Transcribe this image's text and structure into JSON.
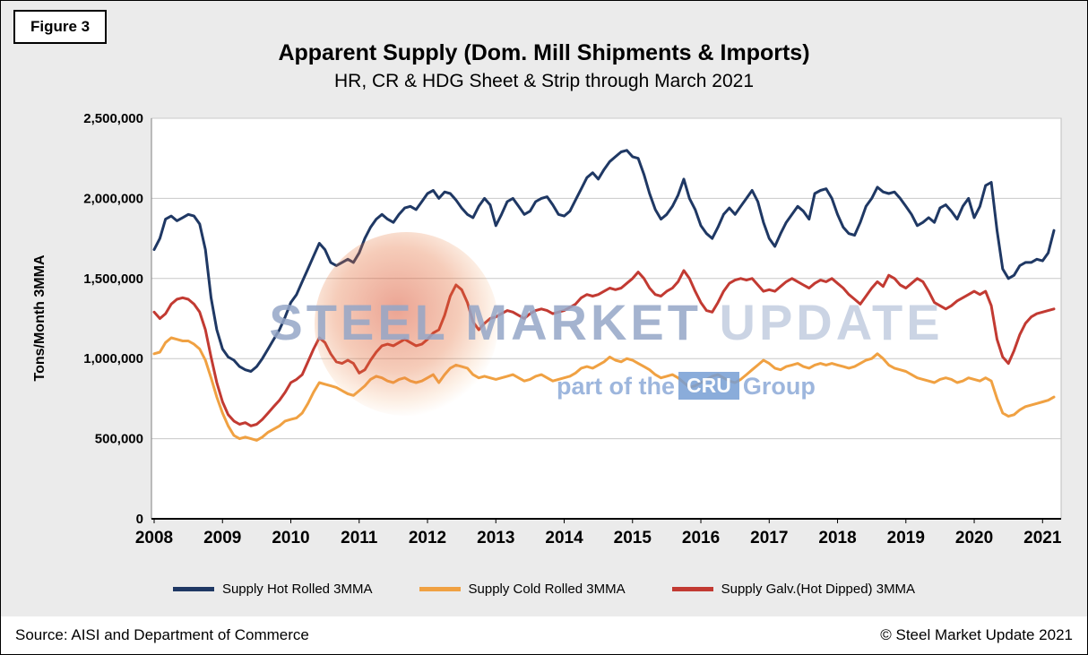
{
  "figure_label": "Figure 3",
  "title": "Apparent Supply (Dom. Mill Shipments & Imports)",
  "subtitle": "HR, CR & HDG Sheet & Strip through March 2021",
  "y_axis_title": "Tons/Month 3MMA",
  "watermark": {
    "text_primary": "STEEL MARKET",
    "text_secondary": "UPDATE",
    "tagline_prefix": "part of the",
    "tagline_box": "CRU",
    "tagline_suffix": "Group"
  },
  "footer": {
    "source": "Source: AISI and Department of Commerce",
    "copyright": "© Steel Market Update 2021"
  },
  "chart_data": {
    "type": "line",
    "title": "Apparent Supply (Dom. Mill Shipments & Imports)",
    "subtitle": "HR, CR & HDG Sheet & Strip through March 2021",
    "ylabel": "Tons/Month 3MMA",
    "xlabel": "",
    "unit": "tons per month, 3-month moving average",
    "value_scale": 1000,
    "x_start": "2008-01",
    "x_end": "2021-03",
    "x_tick_labels": [
      "2008",
      "2009",
      "2010",
      "2011",
      "2012",
      "2013",
      "2014",
      "2015",
      "2016",
      "2017",
      "2018",
      "2019",
      "2020",
      "2021"
    ],
    "ylim": [
      0,
      2500000
    ],
    "ytick_step": 500000,
    "ytick_labels": [
      "0",
      "500,000",
      "1,000,000",
      "1,500,000",
      "2,000,000",
      "2,500,000"
    ],
    "grid": "horizontal",
    "legend_position": "bottom",
    "series": [
      {
        "name": "Supply Hot Rolled 3MMA",
        "color": "#1f3864",
        "values_thousands": [
          1680,
          1750,
          1870,
          1890,
          1860,
          1880,
          1900,
          1890,
          1840,
          1680,
          1380,
          1180,
          1060,
          1010,
          990,
          950,
          930,
          920,
          950,
          1000,
          1060,
          1120,
          1180,
          1260,
          1350,
          1400,
          1480,
          1560,
          1640,
          1720,
          1680,
          1600,
          1580,
          1600,
          1620,
          1600,
          1660,
          1750,
          1820,
          1870,
          1900,
          1870,
          1850,
          1900,
          1940,
          1950,
          1930,
          1980,
          2030,
          2050,
          2000,
          2040,
          2030,
          1990,
          1940,
          1900,
          1880,
          1950,
          2000,
          1960,
          1830,
          1900,
          1980,
          2000,
          1950,
          1900,
          1920,
          1980,
          2000,
          2010,
          1960,
          1900,
          1890,
          1920,
          1990,
          2060,
          2130,
          2160,
          2120,
          2180,
          2230,
          2260,
          2290,
          2300,
          2260,
          2250,
          2150,
          2030,
          1930,
          1870,
          1900,
          1950,
          2020,
          2120,
          2000,
          1930,
          1830,
          1780,
          1750,
          1820,
          1900,
          1940,
          1900,
          1950,
          2000,
          2050,
          1980,
          1850,
          1750,
          1700,
          1780,
          1850,
          1900,
          1950,
          1920,
          1870,
          2030,
          2050,
          2060,
          2000,
          1900,
          1820,
          1780,
          1770,
          1850,
          1950,
          2000,
          2070,
          2040,
          2030,
          2040,
          2000,
          1950,
          1900,
          1830,
          1850,
          1880,
          1850,
          1940,
          1960,
          1920,
          1870,
          1950,
          2000,
          1880,
          1950,
          2080,
          2100,
          1800,
          1560,
          1500,
          1520,
          1580,
          1600,
          1600,
          1620,
          1610,
          1660,
          1800
        ]
      },
      {
        "name": "Supply Cold Rolled 3MMA",
        "color": "#f0a142",
        "values_thousands": [
          1030,
          1040,
          1100,
          1130,
          1120,
          1110,
          1110,
          1090,
          1060,
          990,
          880,
          760,
          660,
          580,
          520,
          500,
          510,
          500,
          490,
          510,
          540,
          560,
          580,
          610,
          620,
          630,
          660,
          720,
          790,
          850,
          840,
          830,
          820,
          800,
          780,
          770,
          800,
          830,
          870,
          890,
          880,
          860,
          850,
          870,
          880,
          860,
          850,
          860,
          880,
          900,
          850,
          900,
          940,
          960,
          950,
          940,
          900,
          880,
          890,
          880,
          870,
          880,
          890,
          900,
          880,
          860,
          870,
          890,
          900,
          880,
          860,
          870,
          880,
          890,
          910,
          940,
          950,
          940,
          960,
          980,
          1010,
          990,
          980,
          1000,
          990,
          970,
          950,
          930,
          900,
          880,
          890,
          900,
          880,
          850,
          820,
          830,
          850,
          870,
          890,
          900,
          880,
          860,
          850,
          870,
          900,
          930,
          960,
          990,
          970,
          940,
          930,
          950,
          960,
          970,
          950,
          940,
          960,
          970,
          960,
          970,
          960,
          950,
          940,
          950,
          970,
          990,
          1000,
          1030,
          1000,
          960,
          940,
          930,
          920,
          900,
          880,
          870,
          860,
          850,
          870,
          880,
          870,
          850,
          860,
          880,
          870,
          860,
          880,
          860,
          750,
          660,
          640,
          650,
          680,
          700,
          710,
          720,
          730,
          740,
          760
        ]
      },
      {
        "name": "Supply Galv.(Hot Dipped) 3MMA",
        "color": "#c23a32",
        "values_thousands": [
          1290,
          1250,
          1280,
          1340,
          1370,
          1380,
          1370,
          1340,
          1290,
          1180,
          1010,
          850,
          730,
          650,
          610,
          590,
          600,
          580,
          590,
          620,
          660,
          700,
          740,
          790,
          850,
          870,
          900,
          980,
          1060,
          1130,
          1100,
          1030,
          980,
          970,
          990,
          970,
          910,
          930,
          990,
          1040,
          1080,
          1090,
          1080,
          1100,
          1120,
          1100,
          1080,
          1090,
          1120,
          1160,
          1180,
          1270,
          1390,
          1460,
          1430,
          1350,
          1230,
          1180,
          1220,
          1250,
          1260,
          1280,
          1300,
          1290,
          1270,
          1250,
          1280,
          1300,
          1310,
          1300,
          1280,
          1290,
          1300,
          1320,
          1340,
          1380,
          1400,
          1390,
          1400,
          1420,
          1440,
          1430,
          1440,
          1470,
          1500,
          1540,
          1500,
          1440,
          1400,
          1390,
          1420,
          1440,
          1480,
          1550,
          1500,
          1420,
          1350,
          1300,
          1290,
          1350,
          1420,
          1470,
          1490,
          1500,
          1490,
          1500,
          1460,
          1420,
          1430,
          1420,
          1450,
          1480,
          1500,
          1480,
          1460,
          1440,
          1470,
          1490,
          1480,
          1500,
          1470,
          1440,
          1400,
          1370,
          1340,
          1390,
          1440,
          1480,
          1450,
          1520,
          1500,
          1460,
          1440,
          1470,
          1500,
          1480,
          1420,
          1350,
          1330,
          1310,
          1330,
          1360,
          1380,
          1400,
          1420,
          1400,
          1420,
          1330,
          1120,
          1010,
          970,
          1050,
          1150,
          1220,
          1260,
          1280,
          1290,
          1300,
          1310
        ]
      }
    ]
  }
}
